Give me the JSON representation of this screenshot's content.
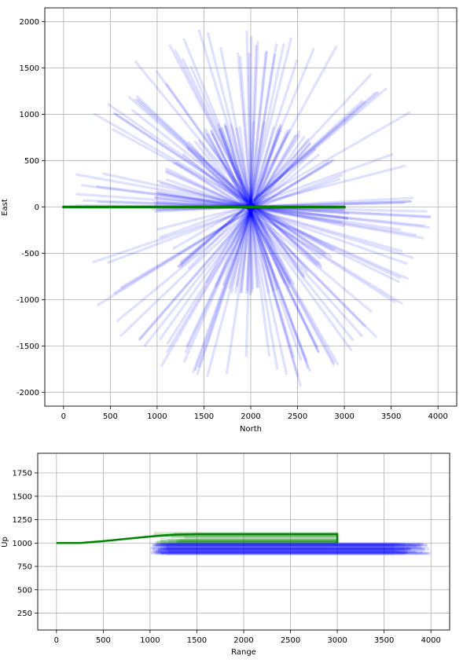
{
  "chart_data": [
    {
      "type": "line",
      "xlabel": "North",
      "ylabel": "East",
      "xlim": [
        -200,
        4200
      ],
      "ylim": [
        -2150,
        2150
      ],
      "xticks": [
        0,
        500,
        1000,
        1500,
        2000,
        2500,
        3000,
        3500,
        4000
      ],
      "yticks": [
        -2000,
        -1500,
        -1000,
        -500,
        0,
        500,
        1000,
        1500,
        2000
      ],
      "grid": true,
      "colors": {
        "reference": "#008000",
        "spread": "#0000ff"
      },
      "series": [
        {
          "points": [
            [
              0,
              0
            ],
            [
              3000,
              0
            ]
          ]
        }
      ],
      "spread": {
        "center": [
          2000,
          0
        ],
        "start_radius": 1000,
        "end_radius_range": [
          1600,
          2000
        ],
        "ray_count": 120
      }
    },
    {
      "type": "line",
      "xlabel": "Range",
      "ylabel": "Up",
      "xlim": [
        -200,
        4200
      ],
      "ylim": [
        70,
        1960
      ],
      "xticks": [
        0,
        500,
        1000,
        1500,
        2000,
        2500,
        3000,
        3500,
        4000
      ],
      "yticks": [
        250,
        500,
        750,
        1000,
        1250,
        1500,
        1750
      ],
      "grid": true,
      "colors": {
        "reference": "#008000",
        "spread": "#0000ff"
      },
      "series": [
        {
          "points": [
            [
              0,
              1000
            ],
            [
              250,
              1000
            ],
            [
              500,
              1020
            ],
            [
              750,
              1045
            ],
            [
              1000,
              1070
            ],
            [
              1250,
              1090
            ],
            [
              1500,
              1095
            ],
            [
              2000,
              1095
            ],
            [
              2500,
              1095
            ],
            [
              3000,
              1095
            ],
            [
              3000,
              1000
            ]
          ]
        }
      ],
      "spread": {
        "y_range": [
          880,
          1000
        ],
        "x_start_range": [
          1000,
          1200
        ],
        "x_end_range": [
          3600,
          4000
        ],
        "green_band_y_range": [
          1000,
          1120
        ]
      }
    }
  ]
}
